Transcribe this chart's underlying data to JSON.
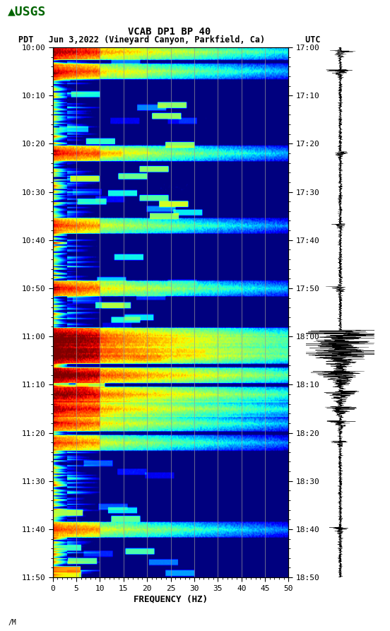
{
  "title_line1": "VCAB DP1 BP 40",
  "title_line2": "PDT   Jun 3,2022 (Vineyard Canyon, Parkfield, Ca)        UTC",
  "xlabel": "FREQUENCY (HZ)",
  "freq_ticks": [
    0,
    5,
    10,
    15,
    20,
    25,
    30,
    35,
    40,
    45,
    50
  ],
  "time_labels_pdt": [
    "10:00",
    "10:10",
    "10:20",
    "10:30",
    "10:40",
    "10:50",
    "11:00",
    "11:10",
    "11:20",
    "11:30",
    "11:40",
    "11:50"
  ],
  "time_labels_utc": [
    "17:00",
    "17:10",
    "17:20",
    "17:30",
    "17:40",
    "17:50",
    "18:00",
    "18:10",
    "18:20",
    "18:30",
    "18:40",
    "18:50"
  ],
  "bg_color": "#ffffff",
  "spectrogram_cmap": "jet",
  "grid_color": "#999999",
  "grid_linewidth": 0.6,
  "title_fontsize": 10,
  "label_fontsize": 9,
  "tick_fontsize": 8,
  "usgs_text_color": "#006400",
  "vertical_gridlines_freq": [
    5,
    10,
    15,
    20,
    25,
    30,
    35,
    40,
    45
  ],
  "event_times_min": [
    1,
    5,
    22,
    37,
    50,
    60,
    62,
    64,
    68,
    72,
    75,
    78,
    82,
    100
  ],
  "event_intensities": [
    3,
    2,
    2,
    1.5,
    2,
    4,
    4,
    5,
    5,
    4,
    3,
    2,
    1.5,
    1.5
  ],
  "n_time": 440,
  "n_freq": 300,
  "total_minutes": 110
}
